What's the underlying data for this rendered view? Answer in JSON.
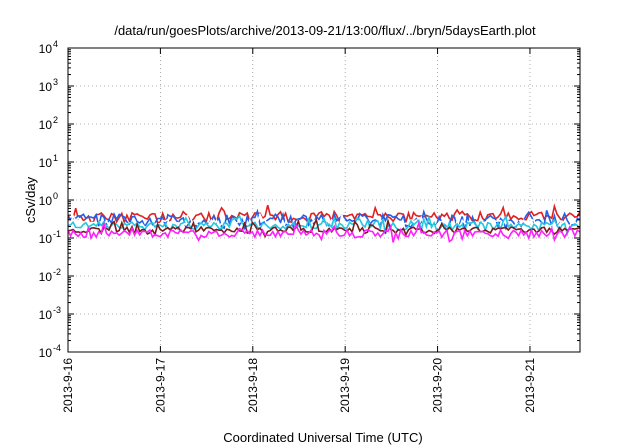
{
  "chart_data": {
    "type": "line",
    "title": "/data/run/goesPlots/archive/2013-09-21/13:00/flux/../bryn/5daysEarth.plot",
    "xlabel": "Coordinated Universal Time (UTC)",
    "ylabel": "cSv/day",
    "yscale": "log",
    "ylim": [
      0.0001,
      10000
    ],
    "xlim": [
      "2013-09-16",
      "2013-09-21 13:00"
    ],
    "x_ticks": [
      "2013-9-16",
      "2013-9-17",
      "2013-9-18",
      "2013-9-19",
      "2013-9-20",
      "2013-9-21"
    ],
    "y_ticks": [
      {
        "base": "10",
        "exp": "4",
        "value": 10000
      },
      {
        "base": "10",
        "exp": "3",
        "value": 1000
      },
      {
        "base": "10",
        "exp": "2",
        "value": 100
      },
      {
        "base": "10",
        "exp": "1",
        "value": 10
      },
      {
        "base": "10",
        "exp": "0",
        "value": 1
      },
      {
        "base": "10",
        "exp": "-1",
        "value": 0.1
      },
      {
        "base": "10",
        "exp": "-2",
        "value": 0.01
      },
      {
        "base": "10",
        "exp": "-3",
        "value": 0.001
      },
      {
        "base": "10",
        "exp": "-4",
        "value": 0.0001
      }
    ],
    "grid": true,
    "legend": "none",
    "series": [
      {
        "color": "#e02020",
        "base": 0.36,
        "amp": 0.1,
        "spike": 0.15,
        "seed": 11
      },
      {
        "color": "#2060e8",
        "base": 0.3,
        "amp": 0.12,
        "spike": 0.35,
        "seed": 23
      },
      {
        "color": "#ffffff",
        "base": 0.24,
        "amp": 0.06,
        "spike": 0.2,
        "seed": 37
      },
      {
        "color": "#20c8e0",
        "base": 0.21,
        "amp": 0.05,
        "spike": 0.25,
        "seed": 41
      },
      {
        "color": "#7a1a1a",
        "base": 0.165,
        "amp": 0.03,
        "spike": 0.15,
        "seed": 53
      },
      {
        "color": "#ff20ff",
        "base": 0.135,
        "amp": 0.03,
        "spike": 0.55,
        "seed": 67
      }
    ]
  }
}
